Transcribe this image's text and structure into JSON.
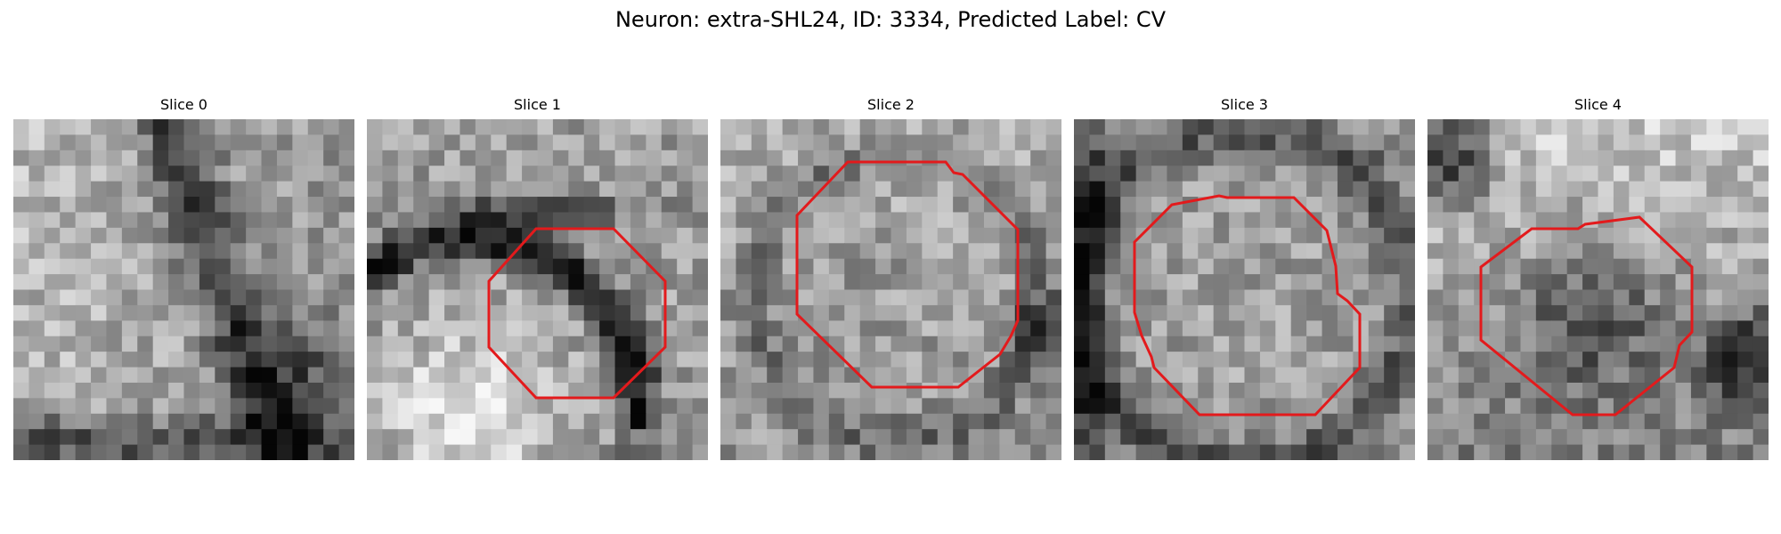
{
  "figure": {
    "title": "Neuron: extra-SHL24, ID: 3334, Predicted Label: CV",
    "contour_color": "#e31a1c"
  },
  "panels": [
    {
      "title": "Slice 0",
      "has_contour": false
    },
    {
      "title": "Slice 1",
      "has_contour": true
    },
    {
      "title": "Slice 2",
      "has_contour": true
    },
    {
      "title": "Slice 3",
      "has_contour": true
    },
    {
      "title": "Slice 4",
      "has_contour": true
    }
  ]
}
